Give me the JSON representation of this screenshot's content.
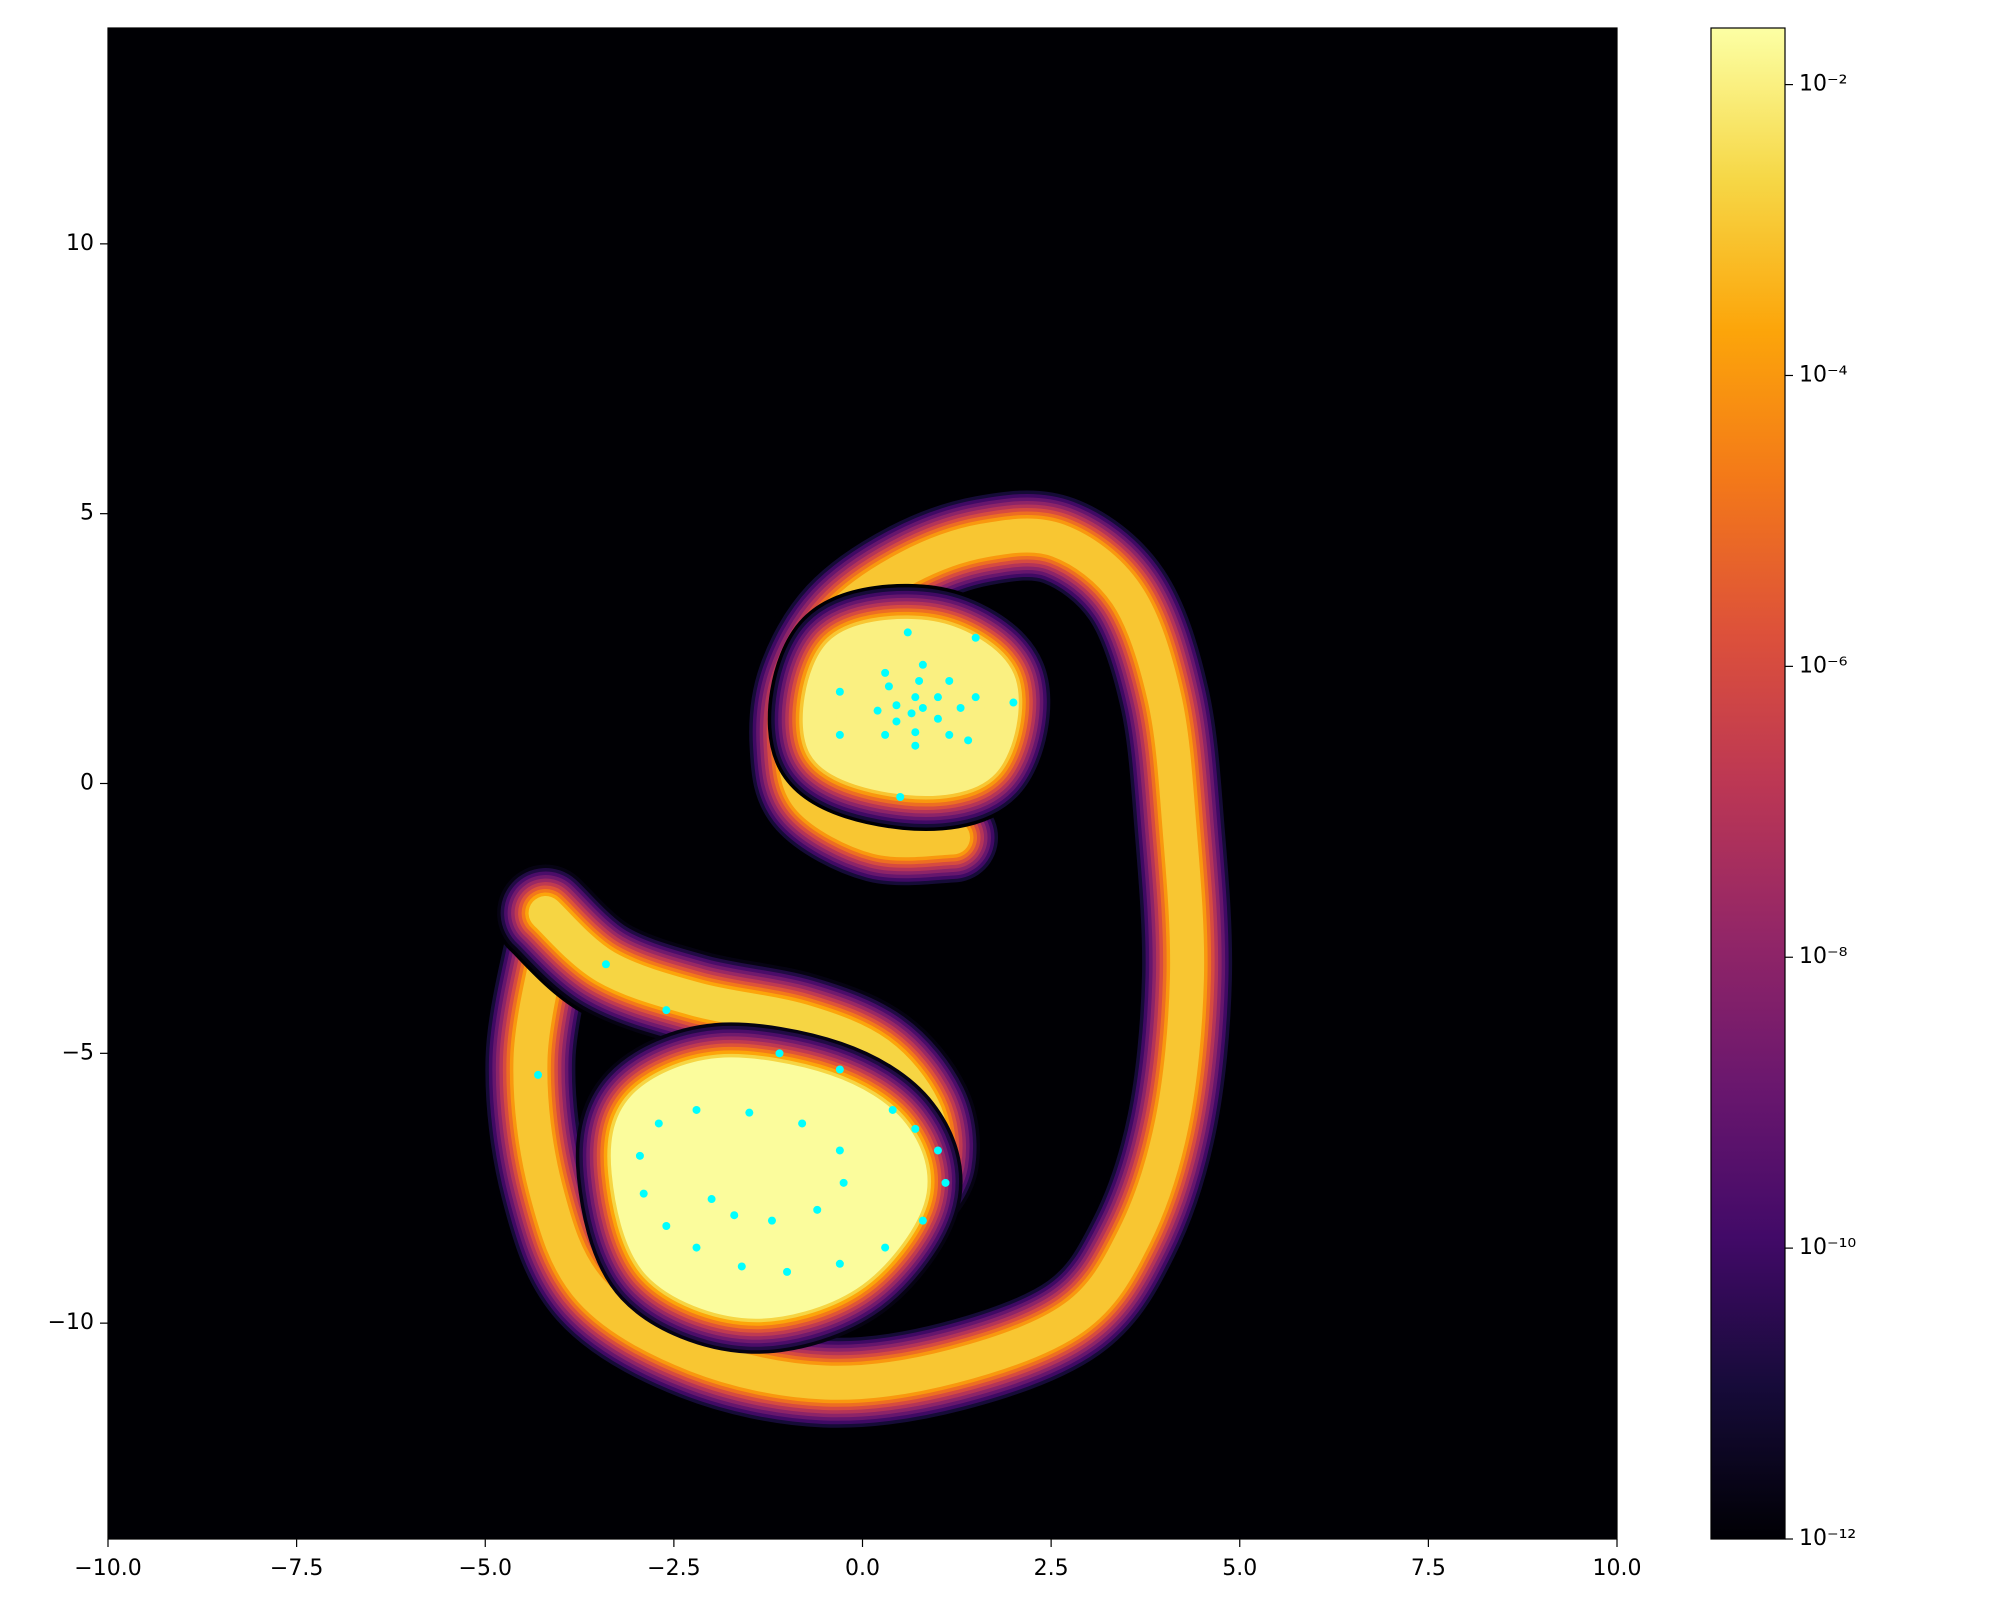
{
  "chart_data": {
    "type": "heatmap",
    "xlim": [
      -10,
      10
    ],
    "ylim": [
      -14,
      14
    ],
    "xticks": [
      {
        "value": -10,
        "label": "−10.0"
      },
      {
        "value": -7.5,
        "label": "−7.5"
      },
      {
        "value": -5,
        "label": "−5.0"
      },
      {
        "value": -2.5,
        "label": "−2.5"
      },
      {
        "value": 0,
        "label": "0.0"
      },
      {
        "value": 2.5,
        "label": "2.5"
      },
      {
        "value": 5,
        "label": "5.0"
      },
      {
        "value": 7.5,
        "label": "7.5"
      },
      {
        "value": 10,
        "label": "10.0"
      }
    ],
    "yticks": [
      {
        "value": -10,
        "label": "−10"
      },
      {
        "value": -5,
        "label": "−5"
      },
      0,
      5,
      10
    ],
    "colorbar": {
      "cmap": "inferno",
      "log": true,
      "lim": [
        1e-12,
        0.0245
      ],
      "ticks": [
        {
          "value": 1e-12,
          "label": "10⁻¹²"
        },
        {
          "value": 1e-10,
          "label": "10⁻¹⁰"
        },
        {
          "value": 1e-08,
          "label": "10⁻⁸"
        },
        {
          "value": 1e-06,
          "label": "10⁻⁶"
        },
        {
          "value": 0.0001,
          "label": "10⁻⁴"
        },
        {
          "value": 0.01,
          "label": "10⁻²"
        }
      ]
    },
    "ridges": [
      {
        "value": 0.001,
        "closed": false,
        "filled": false,
        "x": [
          -4.1,
          -4.4,
          -4.2,
          -3.6,
          -2.2,
          -0.5,
          1.2,
          2.8,
          3.6,
          4.1,
          4.3,
          4.2,
          4.0,
          3.5,
          2.6,
          1.6,
          0.6,
          -0.3,
          -0.8,
          -0.9,
          -0.7,
          0.2,
          1.2
        ],
        "y": [
          -2.7,
          -5.1,
          -7.5,
          -9.4,
          -10.6,
          -11.1,
          -10.8,
          -9.9,
          -8.4,
          -6.3,
          -3.6,
          -0.8,
          1.6,
          3.5,
          4.5,
          4.5,
          4.0,
          3.1,
          1.9,
          0.7,
          -0.3,
          -1.0,
          -1.0
        ]
      },
      {
        "value": 0.002,
        "closed": false,
        "filled": false,
        "x": [
          -4.2,
          -3.4,
          -2.2,
          -0.8,
          0.2,
          0.8,
          0.9,
          0.6
        ],
        "y": [
          -2.4,
          -3.4,
          -4.0,
          -4.4,
          -5.0,
          -6.0,
          -7.0,
          -7.7
        ]
      },
      {
        "value": 0.02,
        "closed": true,
        "filled": true,
        "x": [
          -2.9,
          -1.9,
          -0.5,
          0.4,
          0.6,
          -0.2,
          -1.5,
          -2.7,
          -3.1
        ],
        "y": [
          -6.0,
          -5.4,
          -5.7,
          -6.5,
          -7.7,
          -9.1,
          -9.6,
          -8.9,
          -7.2
        ]
      },
      {
        "value": 0.01,
        "closed": true,
        "filled": true,
        "x": [
          -0.3,
          0.9,
          1.8,
          1.6,
          0.6,
          -0.5
        ],
        "y": [
          2.4,
          2.7,
          1.9,
          0.4,
          0.1,
          0.7
        ]
      }
    ],
    "scatter": {
      "color": "#00ffff",
      "x": [
        0.65,
        0.8,
        0.7,
        0.45,
        0.45,
        0.7,
        1.0,
        1.0,
        0.75,
        0.35,
        0.2,
        0.3,
        0.7,
        1.15,
        1.3,
        1.15,
        0.8,
        0.3,
        1.5,
        1.4,
        -0.3,
        -0.3,
        0.5,
        1.5,
        2.0,
        0.6,
        -2.95,
        -2.7,
        -2.2,
        -1.5,
        -0.8,
        -0.3,
        -0.25,
        -0.6,
        -1.2,
        -1.7,
        -2.0,
        -2.9,
        -2.6,
        -2.2,
        -1.6,
        -1.0,
        -0.3,
        0.3,
        0.8,
        1.1,
        1.0,
        0.7,
        0.4,
        -1.1,
        -0.3,
        -2.6,
        -3.4,
        -4.3
      ],
      "y": [
        1.3,
        1.4,
        1.6,
        1.45,
        1.15,
        0.95,
        1.2,
        1.6,
        1.9,
        1.8,
        1.35,
        0.9,
        0.7,
        0.9,
        1.4,
        1.9,
        2.2,
        2.05,
        1.6,
        0.8,
        1.7,
        0.9,
        -0.25,
        2.7,
        1.5,
        2.8,
        -6.9,
        -6.3,
        -6.05,
        -6.1,
        -6.3,
        -6.8,
        -7.4,
        -7.9,
        -8.1,
        -8.0,
        -7.7,
        -7.6,
        -8.2,
        -8.6,
        -8.95,
        -9.05,
        -8.9,
        -8.6,
        -8.1,
        -7.4,
        -6.8,
        -6.4,
        -6.05,
        -5.0,
        -5.3,
        -4.2,
        -3.35,
        -5.4
      ]
    }
  }
}
